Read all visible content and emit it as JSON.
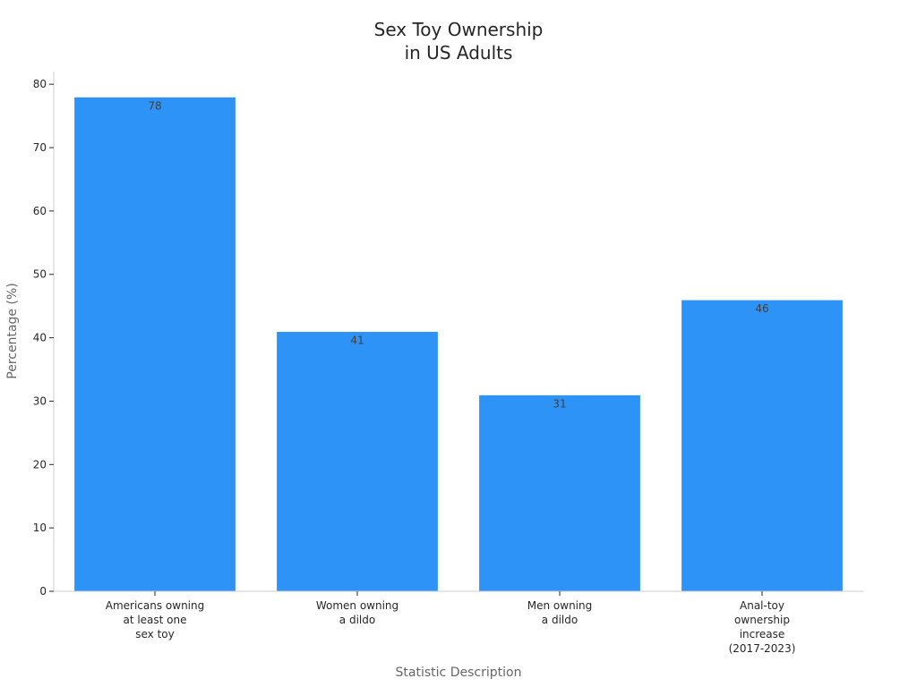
{
  "chart_data": {
    "type": "bar",
    "title": [
      "Sex Toy Ownership",
      "in US Adults"
    ],
    "xlabel": "Statistic Description",
    "ylabel": "Percentage (%)",
    "ylim": [
      0,
      82
    ],
    "yticks": [
      "0",
      "10",
      "20",
      "30",
      "40",
      "50",
      "60",
      "70",
      "80"
    ],
    "categories": [
      [
        "Americans owning",
        "at least one",
        "sex toy"
      ],
      [
        "Women owning",
        "a dildo"
      ],
      [
        "Men owning",
        "a dildo"
      ],
      [
        "Anal-toy",
        "ownership",
        "increase",
        "(2017-2023)"
      ]
    ],
    "values": [
      78,
      41,
      31,
      46
    ],
    "data_labels": [
      "78",
      "41",
      "31",
      "46"
    ],
    "bar_color": "#2e93f7",
    "grid": false
  }
}
